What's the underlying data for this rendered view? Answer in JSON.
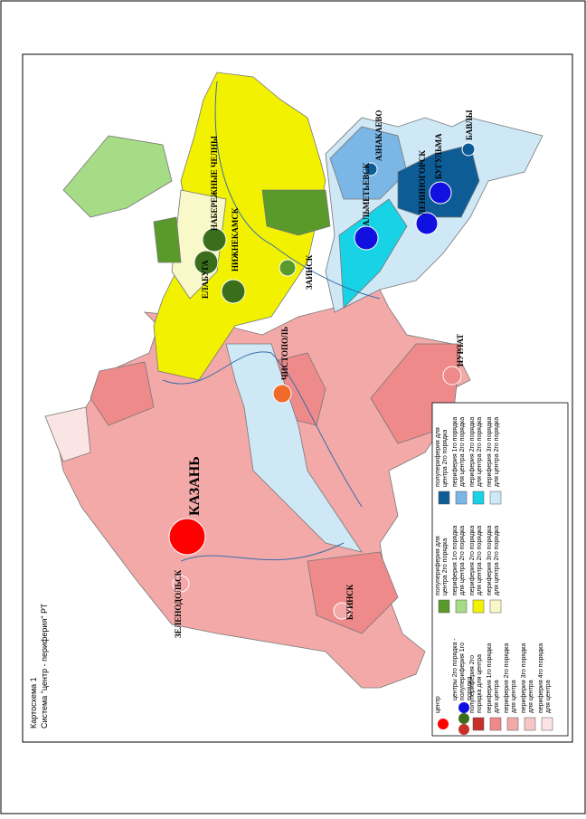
{
  "header": {
    "title": "Картосхема 1",
    "subtitle": "Система \"центр - периферия\" РТ"
  },
  "cities": [
    {
      "label": "КАЗАНЬ"
    },
    {
      "label": "ЗЕЛЕНОДОЛЬСК"
    },
    {
      "label": "ЧИСТОПОЛЬ"
    },
    {
      "label": "НУРЛАТ"
    },
    {
      "label": "БУИНСК"
    },
    {
      "label": "ЕЛАБУГА"
    },
    {
      "label": "НАБЕРЕЖНЫЕ ЧЕЛНЫ"
    },
    {
      "label": "НИЖНЕКАМСК"
    },
    {
      "label": "ЗАИНСК"
    },
    {
      "label": "АЛЬМЕТЬЕВСК"
    },
    {
      "label": "АЗНАКАЕВО"
    },
    {
      "label": "ЛЕНИНОГОРСК"
    },
    {
      "label": "БУГУЛЬМА"
    },
    {
      "label": "БАВЛЫ"
    }
  ],
  "legend": {
    "groups": [
      [
        {
          "lines": [
            "центр"
          ],
          "color": "#ff0000",
          "shape": "circle"
        },
        {
          "lines": [
            "центры 2го порядка -",
            "полупериферия 1го",
            "порядка"
          ],
          "color": "#3a6e1c",
          "shape": "circles"
        },
        {
          "lines": [
            "полупериферия 2го",
            "порядка для центра"
          ],
          "color": "#c8302a",
          "shape": "square"
        },
        {
          "lines": [
            "периферия 1го порядка",
            "для центра"
          ],
          "color": "#ef8a8a",
          "shape": "square"
        },
        {
          "lines": [
            "периферия 2го порядка",
            "для центра"
          ],
          "color": "#f4a9a9",
          "shape": "square"
        },
        {
          "lines": [
            "периферия 3го порядка",
            "для центра"
          ],
          "color": "#f8c6c6",
          "shape": "square"
        },
        {
          "lines": [
            "периферия 4го порядка",
            "для центра"
          ],
          "color": "#fae4e4",
          "shape": "square"
        }
      ],
      [
        {
          "lines": [
            "полупериферия для",
            "центра 2го порядка"
          ],
          "color": "#5a9a2a",
          "shape": "square"
        },
        {
          "lines": [
            "периферия 1го порядка",
            "для центра 2го порядка"
          ],
          "color": "#a6dc86",
          "shape": "square"
        },
        {
          "lines": [
            "периферия 2го порядка",
            "для центра 2го порядка"
          ],
          "color": "#f2f200",
          "shape": "square"
        },
        {
          "lines": [
            "периферия 3го порядка",
            "для центра 2го порядка"
          ],
          "color": "#f8f8c8",
          "shape": "square"
        }
      ],
      [
        {
          "lines": [
            "полупериферия для",
            "центра 2го порядка"
          ],
          "color": "#0e5c96",
          "shape": "square"
        },
        {
          "lines": [
            "периферия 1го порядка",
            "для центра 2го порядка"
          ],
          "color": "#7ab6e6",
          "shape": "square"
        },
        {
          "lines": [
            "периферия 2го порядка",
            "для центра 2го порядка"
          ],
          "color": "#18d2e6",
          "shape": "square"
        },
        {
          "lines": [
            "периферия 3го порядка",
            "для центра 2го порядка"
          ],
          "color": "#cfe8f6",
          "shape": "square"
        }
      ]
    ]
  }
}
